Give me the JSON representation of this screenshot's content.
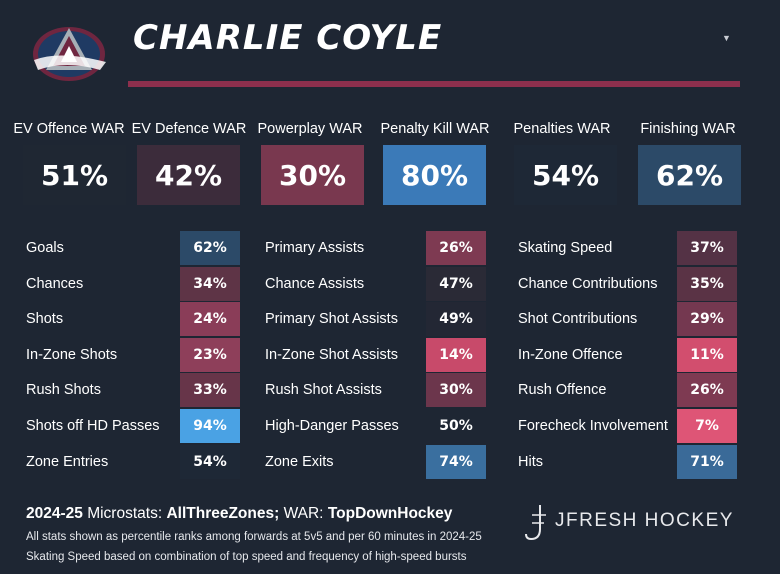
{
  "player": {
    "name": "CHARLIE COYLE"
  },
  "war": [
    {
      "label": "EV Offence WAR",
      "value": "51%",
      "color": "#1f2733"
    },
    {
      "label": "EV Defence WAR",
      "value": "42%",
      "color": "#3c2c3b"
    },
    {
      "label": "Powerplay WAR",
      "value": "30%",
      "color": "#79384f"
    },
    {
      "label": "Penalty Kill WAR",
      "value": "80%",
      "color": "#3b7ab8"
    },
    {
      "label": "Penalties WAR",
      "value": "54%",
      "color": "#1e2836"
    },
    {
      "label": "Finishing WAR",
      "value": "62%",
      "color": "#2c4a68"
    }
  ],
  "stats": {
    "col1": [
      {
        "label": "Goals",
        "value": "62%",
        "color": "#2c4a68"
      },
      {
        "label": "Chances",
        "value": "34%",
        "color": "#5e3446"
      },
      {
        "label": "Shots",
        "value": "24%",
        "color": "#8a3d58"
      },
      {
        "label": "In-Zone Shots",
        "value": "23%",
        "color": "#8e3f5a"
      },
      {
        "label": "Rush Shots",
        "value": "33%",
        "color": "#673549"
      },
      {
        "label": "Shots off HD Passes",
        "value": "94%",
        "color": "#4aa2e4"
      },
      {
        "label": "Zone Entries",
        "value": "54%",
        "color": "#1e2836"
      }
    ],
    "col2": [
      {
        "label": "Primary Assists",
        "value": "26%",
        "color": "#7e3a52"
      },
      {
        "label": "Chance Assists",
        "value": "47%",
        "color": "#2a2a36"
      },
      {
        "label": "Primary Shot Assists",
        "value": "49%",
        "color": "#232734"
      },
      {
        "label": "In-Zone Shot Assists",
        "value": "14%",
        "color": "#c84a6a"
      },
      {
        "label": "Rush Shot Assists",
        "value": "30%",
        "color": "#6c364c"
      },
      {
        "label": "High-Danger Passes",
        "value": "50%",
        "color": "#1e2633"
      },
      {
        "label": "Zone Exits",
        "value": "74%",
        "color": "#3a6f9f"
      }
    ],
    "col3": [
      {
        "label": "Skating Speed",
        "value": "37%",
        "color": "#543245"
      },
      {
        "label": "Chance Contributions",
        "value": "35%",
        "color": "#5a3345"
      },
      {
        "label": "Shot Contributions",
        "value": "29%",
        "color": "#743850"
      },
      {
        "label": "In-Zone Offence",
        "value": "11%",
        "color": "#d24e6e"
      },
      {
        "label": "Rush Offence",
        "value": "26%",
        "color": "#7e3a52"
      },
      {
        "label": "Forecheck Involvement",
        "value": "7%",
        "color": "#de5576"
      },
      {
        "label": "Hits",
        "value": "71%",
        "color": "#3a6a98"
      }
    ]
  },
  "footer": {
    "season": "2024-25",
    "microstats_label": "Microstats:",
    "microstats_source": "AllThreeZones;",
    "war_label": "WAR:",
    "war_source": "TopDownHockey",
    "note1": "All stats shown as percentile ranks among forwards at 5v5 and per 60 minutes in 2024-25",
    "note2": "Skating Speed based on combination of top speed and frequency of high-speed bursts",
    "brand": "JFRESH HOCKEY"
  },
  "icons": {
    "logo": "colorado-avalanche-logo",
    "dropdown": "caret-down-icon",
    "brand": "jfresh-logo-icon"
  },
  "colors": {
    "background": "#1e2633",
    "accent": "#8d2f4d"
  }
}
